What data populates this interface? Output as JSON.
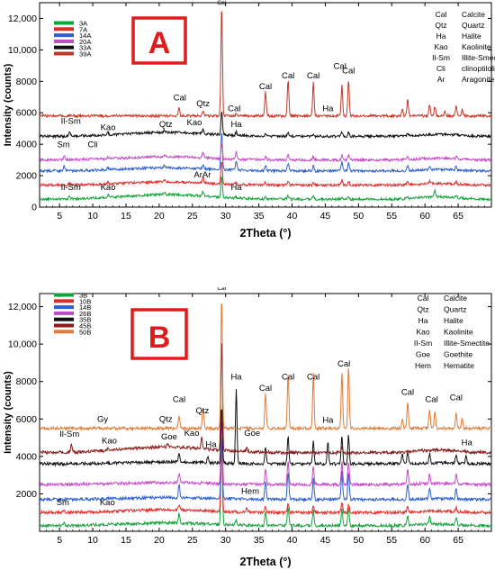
{
  "chart_data": [
    {
      "type": "line",
      "panel_label": "A",
      "xlabel": "2Theta (°)",
      "ylabel": "Intensity (counts)",
      "xlim": [
        2,
        70
      ],
      "ylim": [
        0,
        13000
      ],
      "xticks": [
        5,
        10,
        15,
        20,
        25,
        30,
        35,
        40,
        45,
        50,
        55,
        60,
        65
      ],
      "yticks": [
        0,
        2000,
        4000,
        6000,
        8000,
        10000,
        12000
      ],
      "ytick_labels": [
        "0",
        "2000",
        "4000",
        "6000",
        "8000",
        "10,000",
        "12,000"
      ],
      "legend_position": "top-left",
      "series": [
        {
          "name": "3A",
          "color": "#12a33a",
          "baseline": 500,
          "hump": 300,
          "peaks": [
            [
              6.5,
              200
            ],
            [
              12.3,
              150
            ],
            [
              20.8,
              120
            ],
            [
              26.6,
              300
            ],
            [
              29.4,
              1400
            ],
            [
              31.6,
              100
            ],
            [
              36,
              120
            ],
            [
              39.4,
              200
            ],
            [
              43.2,
              180
            ],
            [
              47.5,
              200
            ],
            [
              48.5,
              200
            ],
            [
              57.4,
              120
            ],
            [
              61.5,
              400
            ],
            [
              64.7,
              150
            ]
          ]
        },
        {
          "name": "7A",
          "color": "#e02a2a",
          "baseline": 1400,
          "hump": 200,
          "peaks": [
            [
              6.5,
              150
            ],
            [
              12.3,
              120
            ],
            [
              20.8,
              150
            ],
            [
              26.6,
              400
            ],
            [
              29.4,
              1500
            ],
            [
              31.6,
              120
            ],
            [
              36,
              150
            ],
            [
              39.4,
              250
            ],
            [
              43.2,
              200
            ],
            [
              47.5,
              300
            ],
            [
              48.5,
              300
            ],
            [
              57.4,
              200
            ],
            [
              60.7,
              150
            ],
            [
              64.7,
              150
            ]
          ]
        },
        {
          "name": "14A",
          "color": "#2f5fd0",
          "baseline": 2300,
          "hump": 200,
          "peaks": [
            [
              5.7,
              350
            ],
            [
              12.3,
              100
            ],
            [
              20.8,
              150
            ],
            [
              26.6,
              250
            ],
            [
              29.4,
              2400
            ],
            [
              31.6,
              600
            ],
            [
              36,
              350
            ],
            [
              39.4,
              500
            ],
            [
              43.2,
              400
            ],
            [
              47.5,
              600
            ],
            [
              48.5,
              600
            ],
            [
              57.4,
              300
            ],
            [
              60.7,
              250
            ],
            [
              64.7,
              200
            ]
          ]
        },
        {
          "name": "20A",
          "color": "#c24bc4",
          "baseline": 3000,
          "hump": 200,
          "peaks": [
            [
              5.7,
              300
            ],
            [
              9.8,
              100
            ],
            [
              12.3,
              100
            ],
            [
              20.8,
              150
            ],
            [
              26.6,
              300
            ],
            [
              29.4,
              900
            ],
            [
              31.6,
              500
            ],
            [
              36,
              200
            ],
            [
              39.4,
              300
            ],
            [
              43.2,
              200
            ],
            [
              47.5,
              300
            ],
            [
              48.5,
              300
            ],
            [
              57.4,
              200
            ],
            [
              64.7,
              150
            ]
          ]
        },
        {
          "name": "33A",
          "color": "#111111",
          "baseline": 4500,
          "hump": 250,
          "peaks": [
            [
              6.5,
              250
            ],
            [
              12.3,
              150
            ],
            [
              20.8,
              150
            ],
            [
              26.6,
              250
            ],
            [
              29.4,
              1500
            ],
            [
              31.6,
              200
            ],
            [
              36,
              150
            ],
            [
              39.4,
              250
            ],
            [
              43.2,
              200
            ],
            [
              47.5,
              250
            ],
            [
              48.5,
              250
            ],
            [
              57.4,
              150
            ],
            [
              64.7,
              150
            ]
          ]
        },
        {
          "name": "39A",
          "color": "#c0392b",
          "baseline": 5800,
          "hump": 0,
          "peaks": [
            [
              23,
              500
            ],
            [
              26.6,
              350
            ],
            [
              29.4,
              7000
            ],
            [
              31.6,
              150
            ],
            [
              36,
              1500
            ],
            [
              39.4,
              2300
            ],
            [
              43.2,
              2100
            ],
            [
              47.5,
              2000
            ],
            [
              48.5,
              2300
            ],
            [
              56.6,
              400
            ],
            [
              57.4,
              1000
            ],
            [
              60.7,
              750
            ],
            [
              61.5,
              600
            ],
            [
              63,
              300
            ],
            [
              64.7,
              650
            ],
            [
              65.6,
              400
            ]
          ]
        }
      ],
      "peak_labels": [
        {
          "text": "Cal",
          "x": 29.4,
          "y": 12900
        },
        {
          "text": "Cal",
          "x": 23.1,
          "y": 6800
        },
        {
          "text": "Qtz",
          "x": 26.6,
          "y": 6400
        },
        {
          "text": "Cal",
          "x": 31.3,
          "y": 6100
        },
        {
          "text": "Cal",
          "x": 36.0,
          "y": 7500
        },
        {
          "text": "Cal",
          "x": 39.4,
          "y": 8200
        },
        {
          "text": "Cal",
          "x": 43.2,
          "y": 8200
        },
        {
          "text": "Ha",
          "x": 45.4,
          "y": 6100
        },
        {
          "text": "Cal",
          "x": 47.2,
          "y": 8800
        },
        {
          "text": "Cal",
          "x": 48.5,
          "y": 8500
        },
        {
          "text": "Il-Sm",
          "x": 6.7,
          "y": 5300
        },
        {
          "text": "Kao",
          "x": 12.3,
          "y": 4900
        },
        {
          "text": "Qtz",
          "x": 21.0,
          "y": 5100
        },
        {
          "text": "Kao",
          "x": 25.3,
          "y": 5200
        },
        {
          "text": "Ha",
          "x": 31.6,
          "y": 5100
        },
        {
          "text": "Sm",
          "x": 5.6,
          "y": 3800
        },
        {
          "text": "Cli",
          "x": 10.0,
          "y": 3800
        },
        {
          "text": "ArAr",
          "x": 26.5,
          "y": 1900
        },
        {
          "text": "Il-Sm",
          "x": 6.7,
          "y": 1100
        },
        {
          "text": "Kao",
          "x": 12.3,
          "y": 1100
        },
        {
          "text": "Ha",
          "x": 31.6,
          "y": 1100
        }
      ],
      "abbrev_legend": [
        [
          "Cal",
          "Calcite"
        ],
        [
          "Qtz",
          "Quartz"
        ],
        [
          "Ha",
          "Halite"
        ],
        [
          "Kao",
          "Kaolinite"
        ],
        [
          "Il-Sm",
          "Illite-Smectite"
        ],
        [
          "Cli",
          "clinoptilolite"
        ],
        [
          "Ar",
          "Aragonite"
        ]
      ]
    },
    {
      "type": "line",
      "panel_label": "B",
      "xlabel": "2Theta (°)",
      "ylabel": "Intensity (counts)",
      "xlim": [
        2,
        70
      ],
      "ylim": [
        0,
        12700
      ],
      "xticks": [
        5,
        10,
        15,
        20,
        25,
        30,
        35,
        40,
        45,
        50,
        55,
        60,
        65
      ],
      "yticks": [
        2000,
        4000,
        6000,
        8000,
        10000,
        12000
      ],
      "ytick_labels": [
        "2000",
        "4000",
        "6000",
        "8000",
        "10,000",
        "12,000"
      ],
      "legend_position": "top-left",
      "series": [
        {
          "name": "3B",
          "color": "#12a33a",
          "baseline": 300,
          "hump": 150,
          "peaks": [
            [
              5.7,
              150
            ],
            [
              23,
              500
            ],
            [
              29.4,
              5000
            ],
            [
              31.6,
              300
            ],
            [
              36,
              700
            ],
            [
              39.4,
              1000
            ],
            [
              43.2,
              800
            ],
            [
              47.5,
              1000
            ],
            [
              48.5,
              1000
            ],
            [
              57.4,
              500
            ],
            [
              60.7,
              400
            ],
            [
              64.7,
              400
            ]
          ]
        },
        {
          "name": "10B",
          "color": "#e02a2a",
          "baseline": 1000,
          "hump": 150,
          "peaks": [
            [
              5.7,
              150
            ],
            [
              23,
              300
            ],
            [
              29.4,
              3500
            ],
            [
              33.2,
              300
            ],
            [
              36,
              300
            ],
            [
              39.4,
              500
            ],
            [
              43.2,
              400
            ],
            [
              47.5,
              500
            ],
            [
              48.5,
              500
            ],
            [
              57.4,
              300
            ],
            [
              64.7,
              200
            ]
          ]
        },
        {
          "name": "14B",
          "color": "#2f5fd0",
          "baseline": 1700,
          "hump": 100,
          "peaks": [
            [
              23,
              700
            ],
            [
              29.4,
              3200
            ],
            [
              36,
              1000
            ],
            [
              39.4,
              1500
            ],
            [
              43.2,
              1200
            ],
            [
              47.5,
              1500
            ],
            [
              48.5,
              1500
            ],
            [
              57.4,
              800
            ],
            [
              60.7,
              600
            ],
            [
              64.7,
              500
            ]
          ]
        },
        {
          "name": "26B",
          "color": "#c24bc4",
          "baseline": 2500,
          "hump": 100,
          "peaks": [
            [
              23,
              500
            ],
            [
              29.4,
              3500
            ],
            [
              36,
              800
            ],
            [
              39.4,
              1200
            ],
            [
              43.2,
              1000
            ],
            [
              47.5,
              1200
            ],
            [
              48.5,
              1200
            ],
            [
              57.4,
              800
            ],
            [
              60.7,
              500
            ],
            [
              64.7,
              500
            ]
          ]
        },
        {
          "name": "35B",
          "color": "#111111",
          "baseline": 3600,
          "hump": 100,
          "peaks": [
            [
              23,
              400
            ],
            [
              27.3,
              300
            ],
            [
              29.4,
              3000
            ],
            [
              31.6,
              3900
            ],
            [
              36,
              900
            ],
            [
              39.4,
              1500
            ],
            [
              43.2,
              1300
            ],
            [
              45.4,
              1200
            ],
            [
              47.5,
              1500
            ],
            [
              48.5,
              1500
            ],
            [
              56.6,
              500
            ],
            [
              57.4,
              600
            ],
            [
              60.7,
              500
            ],
            [
              64.7,
              500
            ],
            [
              66.2,
              400
            ]
          ]
        },
        {
          "name": "45B",
          "color": "#8b1d1d",
          "baseline": 4200,
          "hump": 300,
          "peaks": [
            [
              6.8,
              400
            ],
            [
              12.3,
              200
            ],
            [
              21.3,
              200
            ],
            [
              26.4,
              600
            ],
            [
              29.4,
              6000
            ],
            [
              33.2,
              200
            ],
            [
              47.5,
              300
            ]
          ]
        },
        {
          "name": "50B",
          "color": "#e07b39",
          "baseline": 5500,
          "hump": 0,
          "peaks": [
            [
              23,
              700
            ],
            [
              26.6,
              1100
            ],
            [
              29.4,
              7100
            ],
            [
              36,
              1900
            ],
            [
              39.4,
              3000
            ],
            [
              43.2,
              2900
            ],
            [
              47.5,
              3000
            ],
            [
              48.5,
              3300
            ],
            [
              56.6,
              500
            ],
            [
              57.4,
              1400
            ],
            [
              60.7,
              1000
            ],
            [
              61.5,
              900
            ],
            [
              64.7,
              900
            ],
            [
              65.6,
              500
            ]
          ]
        }
      ],
      "peak_labels": [
        {
          "text": "Cal",
          "x": 29.4,
          "y": 12900
        },
        {
          "text": "Ha",
          "x": 31.6,
          "y": 8100
        },
        {
          "text": "Cal",
          "x": 36.0,
          "y": 7500
        },
        {
          "text": "Cal",
          "x": 39.4,
          "y": 8100
        },
        {
          "text": "Cal",
          "x": 43.2,
          "y": 8100
        },
        {
          "text": "Cal",
          "x": 47.8,
          "y": 8800
        },
        {
          "text": "Ha",
          "x": 45.4,
          "y": 5800
        },
        {
          "text": "Cal",
          "x": 57.4,
          "y": 7300
        },
        {
          "text": "Cal",
          "x": 61.0,
          "y": 6900
        },
        {
          "text": "Cal",
          "x": 64.7,
          "y": 7000
        },
        {
          "text": "Gy",
          "x": 11.5,
          "y": 5850
        },
        {
          "text": "Qtz",
          "x": 21.0,
          "y": 5850
        },
        {
          "text": "Cal",
          "x": 23.0,
          "y": 6900
        },
        {
          "text": "Qtz",
          "x": 26.5,
          "y": 6300
        },
        {
          "text": "Il-Sm",
          "x": 6.5,
          "y": 5050
        },
        {
          "text": "Kao",
          "x": 12.5,
          "y": 4700
        },
        {
          "text": "Goe",
          "x": 21.5,
          "y": 4900
        },
        {
          "text": "Kao",
          "x": 24.9,
          "y": 5100
        },
        {
          "text": "Goe",
          "x": 34.0,
          "y": 5100
        },
        {
          "text": "Ha",
          "x": 27.8,
          "y": 4500
        },
        {
          "text": "Ha",
          "x": 66.3,
          "y": 4600
        },
        {
          "text": "Hem",
          "x": 33.7,
          "y": 2000
        },
        {
          "text": "Sm",
          "x": 5.5,
          "y": 1400
        },
        {
          "text": "Kao",
          "x": 12.2,
          "y": 1400
        }
      ],
      "abbrev_legend": [
        [
          "Cal",
          "Calcite"
        ],
        [
          "Qtz",
          "Quartz"
        ],
        [
          "Ha",
          "Halite"
        ],
        [
          "Kao",
          "Kaolinite"
        ],
        [
          "II-Sm",
          "Illite-Smectite"
        ],
        [
          "Goe",
          "Goethite"
        ],
        [
          "Hem",
          "Hematite"
        ]
      ]
    }
  ]
}
